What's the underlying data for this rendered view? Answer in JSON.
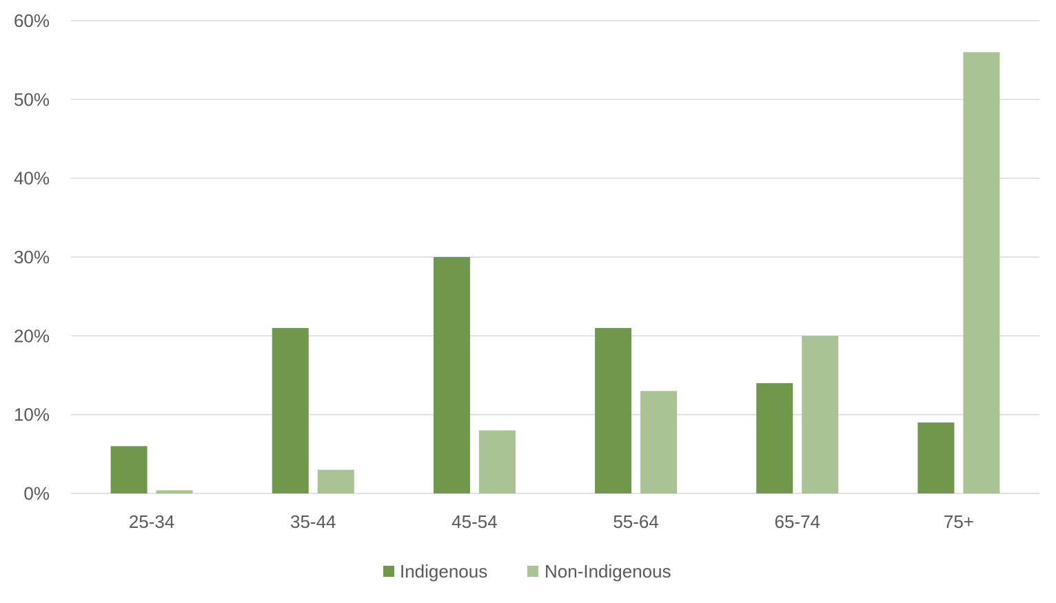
{
  "chart_data": {
    "type": "bar",
    "categories": [
      "25-34",
      "35-44",
      "45-54",
      "55-64",
      "65-74",
      "75+"
    ],
    "series": [
      {
        "name": "Indigenous",
        "color": "#70984B",
        "values": [
          6,
          21,
          30,
          21,
          14,
          9
        ]
      },
      {
        "name": "Non-Indigenous",
        "color": "#A9C394",
        "values": [
          0.4,
          3,
          8,
          13,
          20,
          56
        ]
      }
    ],
    "ylim": [
      0,
      60
    ],
    "yticks": [
      {
        "value": 0,
        "label": "0%"
      },
      {
        "value": 10,
        "label": "10%"
      },
      {
        "value": 20,
        "label": "20%"
      },
      {
        "value": 30,
        "label": "30%"
      },
      {
        "value": 40,
        "label": "40%"
      },
      {
        "value": 50,
        "label": "50%"
      },
      {
        "value": 60,
        "label": "60%"
      }
    ],
    "grid": true,
    "legend_position": "bottom",
    "colors": {
      "gridline": "#D9D9D9",
      "tick_text": "#595959"
    }
  }
}
